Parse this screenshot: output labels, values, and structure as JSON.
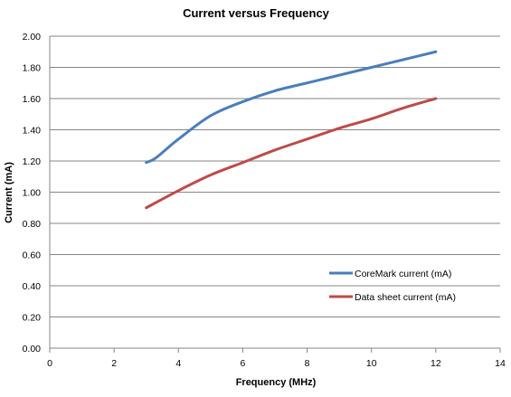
{
  "chart_data": {
    "type": "line",
    "title": "Current versus Frequency",
    "xlabel": "Frequency (MHz)",
    "ylabel": "Current (mA)",
    "xlim": [
      0,
      14
    ],
    "ylim": [
      0,
      2.0
    ],
    "x_ticks": [
      "0",
      "2",
      "4",
      "6",
      "8",
      "10",
      "12",
      "14"
    ],
    "y_ticks": [
      "0.00",
      "0.20",
      "0.40",
      "0.60",
      "0.80",
      "1.00",
      "1.20",
      "1.40",
      "1.60",
      "1.80",
      "2.00"
    ],
    "grid": "horizontal",
    "legend_position": "bottom-right",
    "series": [
      {
        "name": "CoreMark current (mA)",
        "color": "#4a7ebb",
        "x": [
          3,
          3.3,
          4,
          5,
          6,
          7,
          8,
          9,
          10,
          11,
          12
        ],
        "y": [
          1.19,
          1.22,
          1.34,
          1.49,
          1.58,
          1.65,
          1.7,
          1.75,
          1.8,
          1.85,
          1.9
        ]
      },
      {
        "name": "Data sheet current (mA)",
        "color": "#be4b48",
        "x": [
          3,
          4,
          5,
          6,
          7,
          8,
          9,
          10,
          11,
          12
        ],
        "y": [
          0.9,
          1.01,
          1.11,
          1.19,
          1.27,
          1.34,
          1.41,
          1.47,
          1.54,
          1.6
        ]
      }
    ]
  }
}
